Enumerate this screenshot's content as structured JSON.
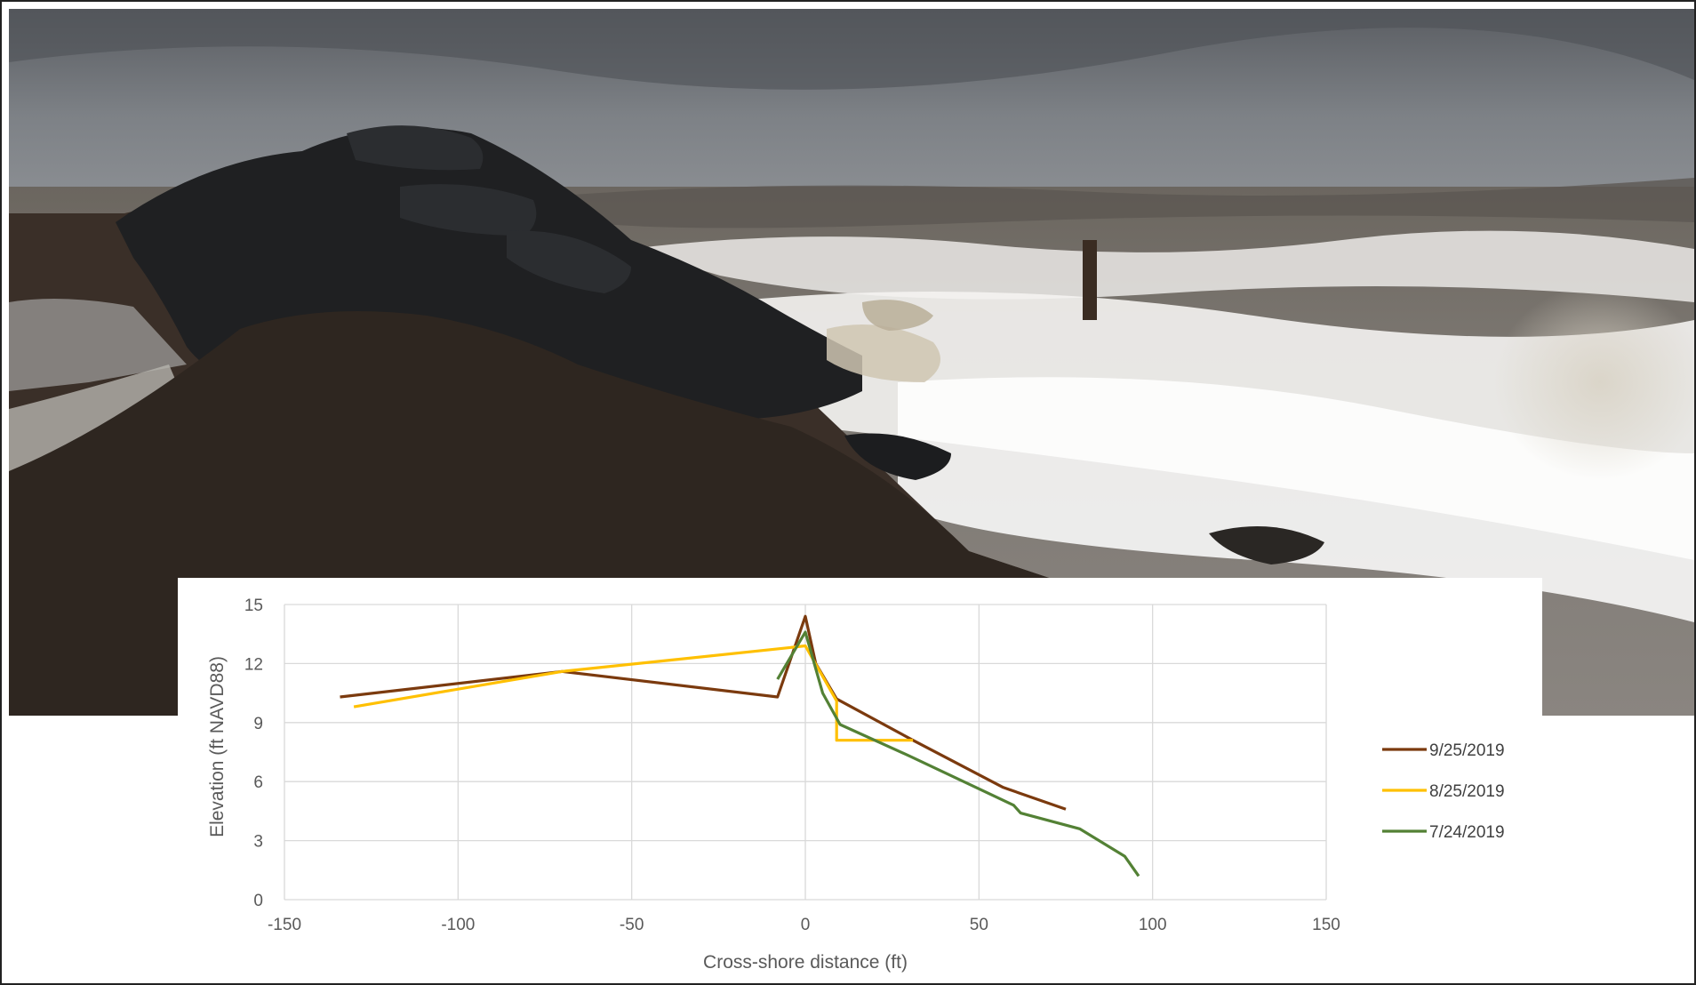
{
  "chart_data": {
    "type": "line",
    "xlabel": "Cross-shore distance (ft)",
    "ylabel": "Elevation (ft NAVD88)",
    "xlim": [
      -150,
      150
    ],
    "ylim": [
      0,
      15
    ],
    "xticks": [
      -150,
      -100,
      -50,
      0,
      50,
      100,
      150
    ],
    "yticks": [
      0,
      3,
      6,
      9,
      12,
      15
    ],
    "grid": true,
    "legend": "right",
    "series": [
      {
        "name": "9/25/2019",
        "color": "#7B3A0E",
        "points": [
          [
            -134,
            10.3
          ],
          [
            -70,
            11.6
          ],
          [
            -8,
            10.3
          ],
          [
            0,
            14.4
          ],
          [
            3,
            12.0
          ],
          [
            9,
            10.2
          ],
          [
            31,
            8.1
          ],
          [
            57,
            5.7
          ],
          [
            75,
            4.6
          ]
        ]
      },
      {
        "name": "8/25/2019",
        "color": "#FFC000",
        "points": [
          [
            -130,
            9.8
          ],
          [
            -70,
            11.6
          ],
          [
            -5,
            12.8
          ],
          [
            0,
            12.9
          ],
          [
            9,
            10.1
          ],
          [
            9,
            8.1
          ],
          [
            31,
            8.1
          ]
        ]
      },
      {
        "name": "7/24/2019",
        "color": "#538135",
        "points": [
          [
            -8,
            11.2
          ],
          [
            0,
            13.6
          ],
          [
            5,
            10.5
          ],
          [
            10,
            8.9
          ],
          [
            30,
            7.3
          ],
          [
            60,
            4.8
          ],
          [
            62,
            4.4
          ],
          [
            79,
            3.6
          ],
          [
            92,
            2.2
          ],
          [
            96,
            1.2
          ]
        ]
      }
    ]
  }
}
